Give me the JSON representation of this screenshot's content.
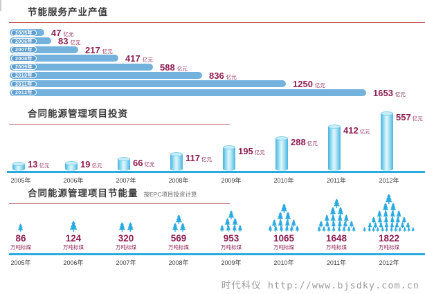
{
  "page": {
    "watermark": "时代科仪 http://www.bjsdky.com.cn"
  },
  "colors": {
    "bar_blue": "#74b2de",
    "pill_blue": "#5e9dd0",
    "value_maroon": "#8e1d51",
    "cyan_axis": "#29abe2",
    "tree_cyan": "#2caadf",
    "title_underline_red": "#c25a60",
    "title_text": "#3a3a3a",
    "watermark_gray": "#9b9b9b"
  },
  "chart_data": [
    {
      "type": "bar",
      "orientation": "horizontal",
      "title": "节能服务产业产值",
      "unit": "亿元",
      "categories": [
        "2005年",
        "2006年",
        "2007年",
        "2008年",
        "2009年",
        "2010年",
        "2011年",
        "2012年"
      ],
      "values": [
        47,
        83,
        217,
        417,
        588,
        836,
        1250,
        1653
      ],
      "xlim": [
        0,
        1800
      ],
      "grid": false,
      "legend": "none"
    },
    {
      "type": "bar",
      "orientation": "vertical",
      "title": "合同能源管理项目投资",
      "unit": "亿元",
      "categories": [
        "2005年",
        "2006年",
        "2007年",
        "2008年",
        "2009年",
        "2010年",
        "2011年",
        "2012年"
      ],
      "values": [
        13,
        19,
        66,
        117,
        195,
        288,
        412,
        557
      ],
      "ylim": [
        0,
        600
      ],
      "grid": false,
      "legend": "none"
    },
    {
      "type": "pictogram",
      "title": "合同能源管理项目节能量",
      "subtitle": "按EPC项目投资计算",
      "unit": "万吨标煤",
      "categories": [
        "2005年",
        "2006年",
        "2007年",
        "2008年",
        "2009年",
        "2010年",
        "2011年",
        "2012年"
      ],
      "values": [
        86,
        124,
        320,
        569,
        953,
        1065,
        1648,
        1822
      ],
      "tree_rows": [
        [
          1
        ],
        [
          1
        ],
        [
          2
        ],
        [
          1,
          2
        ],
        [
          1,
          2,
          4
        ],
        [
          1,
          2,
          4,
          6
        ],
        [
          1,
          2,
          4,
          6,
          8
        ],
        [
          1,
          2,
          4,
          6,
          8,
          12
        ]
      ],
      "tree_sizes": [
        [
          12
        ],
        [
          16
        ],
        [
          14
        ],
        [
          14,
          13
        ],
        [
          13,
          12,
          10
        ],
        [
          14,
          13,
          11,
          9
        ],
        [
          14,
          13,
          11,
          10,
          8
        ],
        [
          15,
          13,
          11,
          10,
          9,
          7
        ]
      ],
      "grid": false,
      "legend": "none"
    }
  ]
}
